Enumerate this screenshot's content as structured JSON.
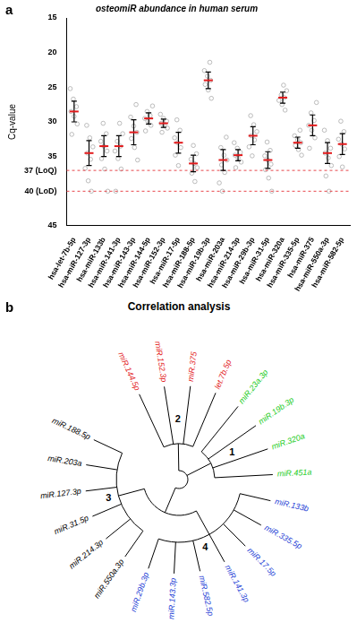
{
  "chart_data": {
    "type": "scatter",
    "panel_label": "a",
    "title": "osteomiR abundance in human serum",
    "y_label": "Cq-value",
    "categories": [
      "hsa-let-7b-5p",
      "hsa-miR-127-3p",
      "hsa-miR-133b",
      "hsa-miR-141-3p",
      "hsa-miR-143-3p",
      "hsa-miR-144-5p",
      "hsa-miR-152-3p",
      "hsa-miR-17-5p",
      "hsa-miR-188-5p",
      "hsa-miR-19b-3p",
      "hsa-miR-203a",
      "hsa-miR-214-3p",
      "hsa-miR-29b-3p",
      "hsa-miR-31-5p",
      "hsa-miR-320a",
      "hsa-miR-335-5p",
      "hsa-miR-375",
      "hsa-miR-550a-3p",
      "hsa-miR-582-5p"
    ],
    "points": [
      [
        25.2,
        26.7,
        27.8,
        28.5,
        29.2,
        30.3,
        31.8
      ],
      [
        30.5,
        32.3,
        33.6,
        34.5,
        35.4,
        36.7,
        38.5,
        40
      ],
      [
        30.2,
        31.7,
        32.8,
        33.5,
        34.2,
        35.3,
        36.8,
        40
      ],
      [
        30.2,
        31.7,
        32.8,
        33.5,
        34.2,
        35.3,
        36.8,
        40
      ],
      [
        27.5,
        29.3,
        30.6,
        31.5,
        32.4,
        33.7,
        35.5
      ],
      [
        27.7,
        28.5,
        29.1,
        29.5,
        29.9,
        30.5,
        31.3
      ],
      [
        28.9,
        29.5,
        29.9,
        30.2,
        30.5,
        30.9,
        31.5
      ],
      [
        29.7,
        31.2,
        32.3,
        33.0,
        33.7,
        34.8,
        36.3
      ],
      [
        33.4,
        34.6,
        35.4,
        36.0,
        36.6,
        37.4,
        38.6
      ],
      [
        21.4,
        22.6,
        23.4,
        24.0,
        24.6,
        25.4,
        26.6
      ],
      [
        32.2,
        33.7,
        34.8,
        35.5,
        36.2,
        37.3,
        38.8,
        40
      ],
      [
        33.0,
        33.8,
        34.4,
        34.8,
        35.2,
        35.8,
        36.6
      ],
      [
        29.1,
        30.4,
        31.4,
        32.0,
        32.6,
        33.6,
        34.9
      ],
      [
        32.9,
        34.1,
        34.9,
        35.5,
        36.1,
        36.9,
        38.1,
        40
      ],
      [
        24.7,
        25.5,
        26.1,
        26.5,
        26.9,
        27.5,
        28.3
      ],
      [
        31.2,
        32.0,
        32.6,
        33.0,
        33.4,
        34.0,
        34.8
      ],
      [
        27.2,
        28.7,
        29.8,
        30.5,
        31.2,
        32.3,
        33.8
      ],
      [
        31.2,
        32.7,
        33.8,
        34.5,
        35.2,
        36.3,
        37.8,
        40
      ],
      [
        29.9,
        31.4,
        32.5,
        33.2,
        33.9,
        35.0,
        36.5
      ]
    ],
    "mean": [
      28.5,
      34.5,
      33.5,
      33.5,
      31.5,
      29.5,
      30.2,
      33.0,
      36.0,
      24.0,
      35.5,
      34.8,
      32.0,
      35.5,
      26.5,
      33.0,
      30.5,
      34.5,
      33.2
    ],
    "sd": [
      1.5,
      1.8,
      1.5,
      1.5,
      1.8,
      0.8,
      0.6,
      1.5,
      1.2,
      1.2,
      1.5,
      0.8,
      1.3,
      1.2,
      0.8,
      0.8,
      1.5,
      1.5,
      1.5
    ],
    "color": "#a0a0a0",
    "ylim": [
      45,
      15
    ],
    "yticks": [
      15,
      20,
      25,
      30,
      35,
      {
        "value": 37,
        "label": "37 (LoQ)"
      },
      {
        "value": 40,
        "label": "40 (LoD)"
      },
      45
    ],
    "reference_lines": [
      37,
      40
    ],
    "grid": false,
    "marker": "circle"
  },
  "dendrogram": {
    "panel_label": "b",
    "title": "Correlation analysis",
    "tree": {
      "children": [
        {
          "cluster": "2",
          "color": "#e31a1c",
          "children": [
            {
              "label": "miR.144.5p"
            },
            {
              "label": "miR.152.3p"
            },
            {
              "label": "miR.375"
            },
            {
              "label": "let.7b.5p"
            }
          ]
        },
        {
          "cluster": "1",
          "color": "#22cc22",
          "children": [
            {
              "label": "miR.23a.3p"
            },
            {
              "label": "miR.19b.3p"
            },
            {
              "label": "miR.320a"
            },
            {
              "label": "miR.451a"
            }
          ]
        },
        {
          "children": [
            {
              "cluster": "4",
              "color": "#1f3fd6",
              "children": [
                {
                  "label": "miR.133b"
                },
                {
                  "label": "miR.335.5p"
                },
                {
                  "label": "miR.17.5p"
                },
                {
                  "label": "miR.141.3p"
                },
                {
                  "label": "miR.582.5p"
                },
                {
                  "label": "miR.143.3p"
                },
                {
                  "label": "miR.29b.3p"
                }
              ]
            },
            {
              "cluster": "3",
              "color": "#000000",
              "children": [
                {
                  "label": "miR.550a.3p"
                },
                {
                  "label": "miR.214.3p"
                },
                {
                  "label": "miR.31.5p"
                },
                {
                  "label": "miR.127.3p"
                },
                {
                  "label": "miR.203a"
                },
                {
                  "label": "miR.188.5p"
                }
              ]
            }
          ]
        }
      ]
    }
  }
}
